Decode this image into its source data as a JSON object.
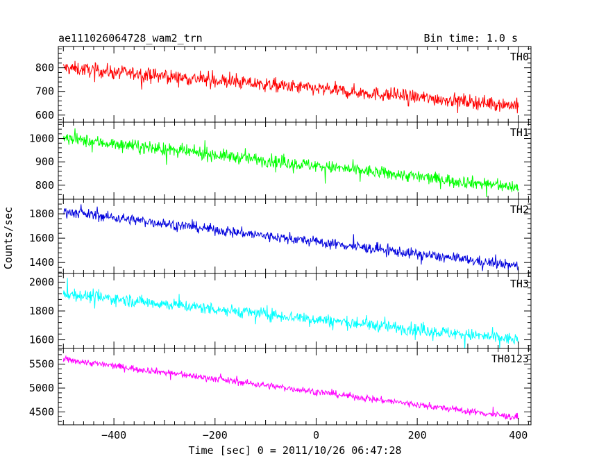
{
  "header": {
    "title": "ae111026064728_wam2_trn",
    "bin_time": "Bin time: 1.0 s"
  },
  "axes": {
    "xlabel": "Time [sec] 0 = 2011/10/26 06:47:28",
    "ylabel": "Counts/sec"
  },
  "chart_data": {
    "type": "line",
    "xlim": [
      -510,
      425
    ],
    "x_ticks": [
      -400,
      -200,
      0,
      200,
      400
    ],
    "x_tick_labels": [
      "−400",
      "−200",
      "0",
      "200",
      "400"
    ],
    "x_range": [
      -500,
      400
    ],
    "bin_time_s": 1.0,
    "panels": [
      {
        "name": "TH0",
        "color": "#ff0000",
        "ylim": [
          570,
          890
        ],
        "y_ticks": [
          600,
          700,
          800
        ],
        "y_tick_labels": [
          "600",
          "700",
          "800"
        ],
        "trend_start": 800,
        "trend_end": 640,
        "noise_amplitude": 38
      },
      {
        "name": "TH1",
        "color": "#00ff00",
        "ylim": [
          740,
          1070
        ],
        "y_ticks": [
          800,
          900,
          1000
        ],
        "y_tick_labels": [
          "800",
          "900",
          "1000"
        ],
        "trend_start": 1000,
        "trend_end": 790,
        "noise_amplitude": 35
      },
      {
        "name": "TH2",
        "color": "#0000dd",
        "ylim": [
          1310,
          1920
        ],
        "y_ticks": [
          1400,
          1600,
          1800
        ],
        "y_tick_labels": [
          "1400",
          "1600",
          "1800"
        ],
        "trend_start": 1820,
        "trend_end": 1370,
        "noise_amplitude": 55
      },
      {
        "name": "TH3",
        "color": "#00ffff",
        "ylim": [
          1540,
          2060
        ],
        "y_ticks": [
          1600,
          1800,
          2000
        ],
        "y_tick_labels": [
          "1600",
          "1800",
          "2000"
        ],
        "trend_start": 1920,
        "trend_end": 1600,
        "noise_amplitude": 55
      },
      {
        "name": "TH0123",
        "color": "#ff00ff",
        "ylim": [
          4230,
          5830
        ],
        "y_ticks": [
          4500,
          5000,
          5500
        ],
        "y_tick_labels": [
          "4500",
          "5000",
          "5500"
        ],
        "trend_start": 5600,
        "trend_end": 4380,
        "noise_amplitude": 90
      }
    ]
  }
}
